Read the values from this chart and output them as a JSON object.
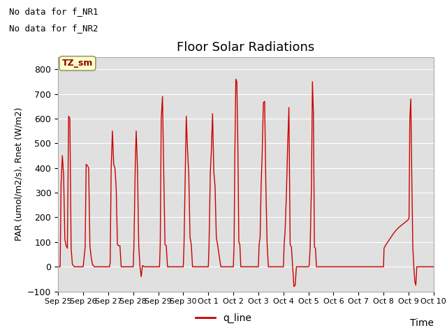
{
  "title": "Floor Solar Radiations",
  "xlabel": "Time",
  "ylabel": "PAR (umol/m2/s), Rnet (W/m2)",
  "ylim": [
    -100,
    850
  ],
  "yticks": [
    -100,
    0,
    100,
    200,
    300,
    400,
    500,
    600,
    700,
    800
  ],
  "text_top_left_1": "No data for f_NR1",
  "text_top_left_2": "No data for f_NR2",
  "legend_label": "q_line",
  "legend_color": "#cc0000",
  "line_color": "#cc0000",
  "axes_facecolor": "#e0e0e0",
  "annotation_box_text": "TZ_sm",
  "annotation_box_facecolor": "#ffffcc",
  "annotation_box_edgecolor": "#999966",
  "xtick_labels": [
    "Sep 25",
    "Sep 26",
    "Sep 27",
    "Sep 28",
    "Sep 29",
    "Sep 30",
    "Oct 1",
    "Oct 2",
    "Oct 3",
    "Oct 4",
    "Oct 5",
    "Oct 6",
    "Oct 7",
    "Oct 8",
    "Oct 9",
    "Oct 10"
  ],
  "xtick_positions": [
    0,
    1,
    2,
    3,
    4,
    5,
    6,
    7,
    8,
    9,
    10,
    11,
    12,
    13,
    14,
    15
  ],
  "day_data": [
    [
      0.0,
      0
    ],
    [
      0.08,
      0
    ],
    [
      0.12,
      340
    ],
    [
      0.17,
      450
    ],
    [
      0.22,
      370
    ],
    [
      0.27,
      110
    ],
    [
      0.32,
      85
    ],
    [
      0.37,
      75
    ],
    [
      0.42,
      610
    ],
    [
      0.47,
      600
    ],
    [
      0.52,
      75
    ],
    [
      0.57,
      10
    ],
    [
      0.65,
      0
    ],
    [
      0.75,
      0
    ],
    [
      0.9,
      0
    ],
    [
      1.0,
      0
    ],
    [
      1.08,
      80
    ],
    [
      1.12,
      415
    ],
    [
      1.17,
      410
    ],
    [
      1.22,
      400
    ],
    [
      1.27,
      85
    ],
    [
      1.32,
      40
    ],
    [
      1.37,
      10
    ],
    [
      1.45,
      0
    ],
    [
      1.55,
      0
    ],
    [
      1.7,
      0
    ],
    [
      1.85,
      0
    ],
    [
      2.0,
      0
    ],
    [
      2.05,
      0
    ],
    [
      2.08,
      15
    ],
    [
      2.12,
      400
    ],
    [
      2.17,
      550
    ],
    [
      2.22,
      415
    ],
    [
      2.27,
      400
    ],
    [
      2.32,
      320
    ],
    [
      2.37,
      90
    ],
    [
      2.42,
      85
    ],
    [
      2.47,
      85
    ],
    [
      2.52,
      0
    ],
    [
      2.65,
      0
    ],
    [
      2.8,
      0
    ],
    [
      3.0,
      0
    ],
    [
      3.03,
      90
    ],
    [
      3.08,
      400
    ],
    [
      3.12,
      550
    ],
    [
      3.17,
      400
    ],
    [
      3.22,
      90
    ],
    [
      3.27,
      0
    ],
    [
      3.32,
      -40
    ],
    [
      3.37,
      5
    ],
    [
      3.45,
      0
    ],
    [
      3.6,
      0
    ],
    [
      3.75,
      0
    ],
    [
      3.9,
      0
    ],
    [
      4.0,
      0
    ],
    [
      4.05,
      0
    ],
    [
      4.08,
      90
    ],
    [
      4.12,
      600
    ],
    [
      4.17,
      690
    ],
    [
      4.22,
      380
    ],
    [
      4.27,
      90
    ],
    [
      4.32,
      85
    ],
    [
      4.37,
      0
    ],
    [
      4.5,
      0
    ],
    [
      4.65,
      0
    ],
    [
      4.8,
      0
    ],
    [
      5.0,
      0
    ],
    [
      5.03,
      90
    ],
    [
      5.08,
      370
    ],
    [
      5.12,
      610
    ],
    [
      5.17,
      475
    ],
    [
      5.22,
      375
    ],
    [
      5.27,
      120
    ],
    [
      5.32,
      90
    ],
    [
      5.37,
      0
    ],
    [
      5.5,
      0
    ],
    [
      5.65,
      0
    ],
    [
      5.8,
      0
    ],
    [
      6.0,
      0
    ],
    [
      6.03,
      90
    ],
    [
      6.08,
      380
    ],
    [
      6.12,
      465
    ],
    [
      6.17,
      620
    ],
    [
      6.22,
      385
    ],
    [
      6.27,
      325
    ],
    [
      6.32,
      120
    ],
    [
      6.37,
      90
    ],
    [
      6.5,
      0
    ],
    [
      6.65,
      0
    ],
    [
      6.8,
      0
    ],
    [
      7.0,
      0
    ],
    [
      7.03,
      90
    ],
    [
      7.06,
      450
    ],
    [
      7.1,
      760
    ],
    [
      7.14,
      750
    ],
    [
      7.18,
      500
    ],
    [
      7.22,
      100
    ],
    [
      7.26,
      90
    ],
    [
      7.3,
      0
    ],
    [
      7.5,
      0
    ],
    [
      7.65,
      0
    ],
    [
      7.8,
      0
    ],
    [
      8.0,
      0
    ],
    [
      8.03,
      90
    ],
    [
      8.07,
      120
    ],
    [
      8.11,
      330
    ],
    [
      8.15,
      450
    ],
    [
      8.2,
      665
    ],
    [
      8.25,
      670
    ],
    [
      8.3,
      325
    ],
    [
      8.35,
      90
    ],
    [
      8.4,
      0
    ],
    [
      8.55,
      0
    ],
    [
      8.7,
      0
    ],
    [
      8.85,
      0
    ],
    [
      9.0,
      0
    ],
    [
      9.03,
      90
    ],
    [
      9.07,
      150
    ],
    [
      9.12,
      295
    ],
    [
      9.17,
      490
    ],
    [
      9.22,
      645
    ],
    [
      9.27,
      90
    ],
    [
      9.32,
      80
    ],
    [
      9.37,
      0
    ],
    [
      9.42,
      -80
    ],
    [
      9.47,
      -75
    ],
    [
      9.52,
      0
    ],
    [
      9.65,
      0
    ],
    [
      9.8,
      0
    ],
    [
      10.0,
      0
    ],
    [
      10.03,
      5
    ],
    [
      10.07,
      80
    ],
    [
      10.12,
      330
    ],
    [
      10.16,
      750
    ],
    [
      10.2,
      620
    ],
    [
      10.24,
      80
    ],
    [
      10.28,
      75
    ],
    [
      10.32,
      0
    ],
    [
      10.5,
      0
    ],
    [
      10.65,
      0
    ],
    [
      10.8,
      0
    ],
    [
      11.0,
      0
    ],
    [
      11.1,
      0
    ],
    [
      11.3,
      0
    ],
    [
      11.5,
      0
    ],
    [
      11.7,
      0
    ],
    [
      11.9,
      0
    ],
    [
      12.0,
      0
    ],
    [
      12.1,
      0
    ],
    [
      12.3,
      0
    ],
    [
      12.5,
      0
    ],
    [
      12.7,
      0
    ],
    [
      12.9,
      0
    ],
    [
      13.0,
      0
    ],
    [
      13.02,
      75
    ],
    [
      13.1,
      90
    ],
    [
      13.2,
      105
    ],
    [
      13.3,
      120
    ],
    [
      13.4,
      135
    ],
    [
      13.5,
      148
    ],
    [
      13.6,
      158
    ],
    [
      13.7,
      167
    ],
    [
      13.8,
      175
    ],
    [
      13.9,
      183
    ],
    [
      14.0,
      192
    ],
    [
      14.02,
      200
    ],
    [
      14.05,
      600
    ],
    [
      14.09,
      680
    ],
    [
      14.13,
      355
    ],
    [
      14.17,
      80
    ],
    [
      14.21,
      0
    ],
    [
      14.25,
      -60
    ],
    [
      14.29,
      -75
    ],
    [
      14.33,
      0
    ],
    [
      14.5,
      0
    ],
    [
      14.7,
      0
    ],
    [
      14.9,
      0
    ],
    [
      15.0,
      0
    ]
  ]
}
